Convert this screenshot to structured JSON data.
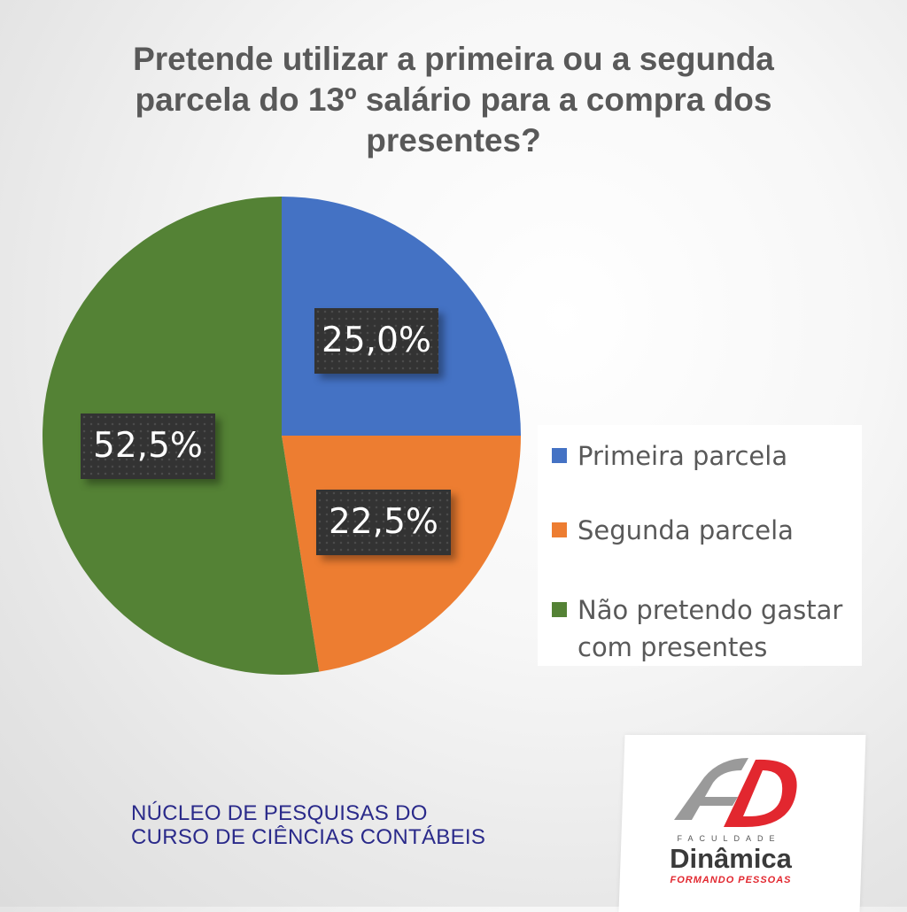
{
  "title_lines": [
    "Pretende utilizar a primeira ou a segunda",
    "parcela do 13º salário para a compra dos",
    "presentes?"
  ],
  "chart_data": {
    "type": "pie",
    "title": "Pretende utilizar a primeira ou a segunda parcela do 13º salário para a compra dos presentes?",
    "categories": [
      "Primeira parcela",
      "Segunda parcela",
      "Não pretendo gastar com presentes"
    ],
    "values": [
      25.0,
      22.5,
      52.5
    ],
    "labels": [
      "25,0%",
      "22,5%",
      "52,5%"
    ],
    "colors": [
      "#4472c4",
      "#ed7d31",
      "#548235"
    ],
    "start_angle": "12 o'clock, clockwise",
    "legend_position": "right"
  },
  "legend_items": [
    "Primeira parcela",
    "Segunda parcela",
    "Não pretendo gastar com presentes"
  ],
  "footer_lines": [
    "NÚCLEO DE PESQUISAS DO",
    "CURSO DE CIÊNCIAS CONTÁBEIS"
  ],
  "logo": {
    "prefix": "FACULDADE",
    "name": "Dinâmica",
    "tagline": "FORMANDO PESSOAS",
    "icon": "fd-monogram-icon",
    "colors": {
      "red": "#e2272f",
      "gray": "#9a9a9a"
    }
  }
}
